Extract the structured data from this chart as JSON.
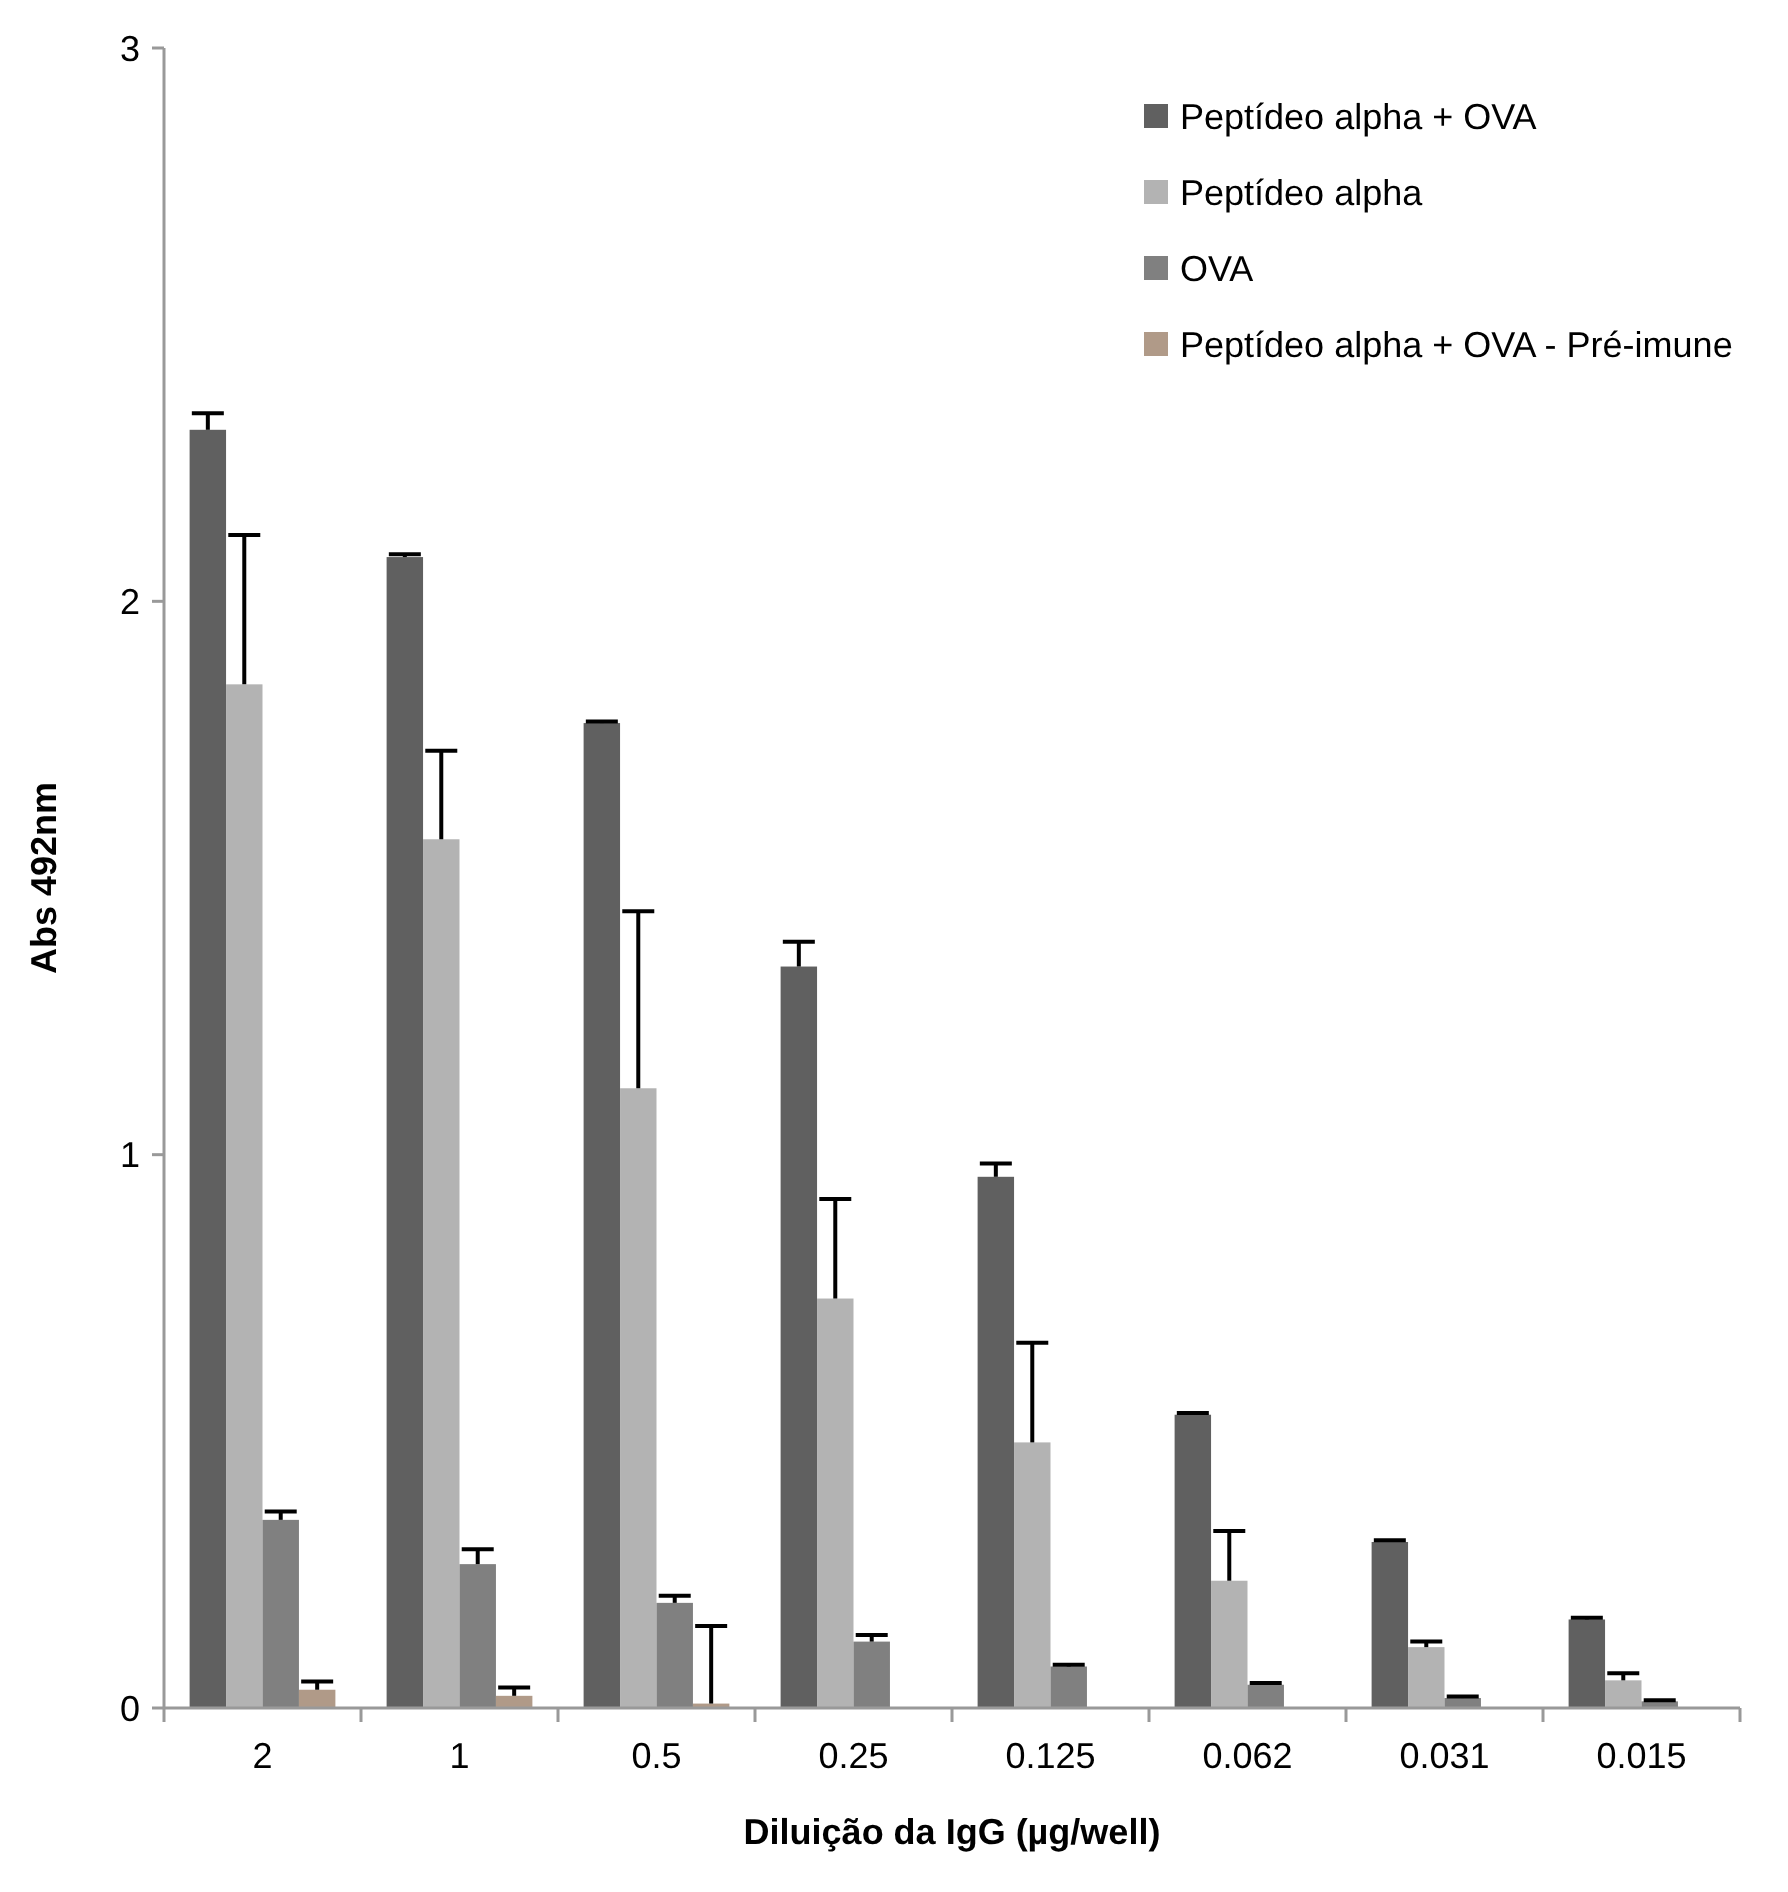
{
  "chart_data": {
    "type": "bar",
    "xlabel": "Diluição da IgG (µg/well)",
    "ylabel": "Abs 492nm",
    "categories": [
      "2",
      "1",
      "0.5",
      "0.25",
      "0.125",
      "0.062",
      "0.031",
      "0.015"
    ],
    "ylim": [
      0,
      3
    ],
    "yticks": [
      0,
      1,
      2,
      3
    ],
    "grid": false,
    "legend": "top right",
    "series": [
      {
        "name": "Peptídeo alpha + OVA",
        "color": "#606060",
        "values": [
          2.31,
          2.08,
          1.78,
          1.34,
          0.96,
          0.53,
          0.3,
          0.16
        ],
        "errors": [
          0.03,
          0.005,
          0.003,
          0.045,
          0.024,
          0.003,
          0.003,
          0.003
        ]
      },
      {
        "name": "Peptídeo alpha",
        "color": "#b3b3b3",
        "values": [
          1.85,
          1.57,
          1.12,
          0.74,
          0.48,
          0.23,
          0.11,
          0.05
        ],
        "errors": [
          0.27,
          0.16,
          0.32,
          0.18,
          0.18,
          0.09,
          0.01,
          0.013
        ]
      },
      {
        "name": "OVA",
        "color": "#808080",
        "values": [
          0.34,
          0.26,
          0.19,
          0.12,
          0.075,
          0.042,
          0.018,
          0.012
        ],
        "errors": [
          0.015,
          0.027,
          0.013,
          0.012,
          0.003,
          0.003,
          0.003,
          0.002
        ]
      },
      {
        "name": "Peptídeo alpha + OVA - Pré-imune",
        "color": "#b09a88",
        "values": [
          0.033,
          0.022,
          0.008,
          null,
          null,
          null,
          null,
          null
        ],
        "errors": [
          0.015,
          0.015,
          0.14,
          null,
          null,
          null,
          null,
          null
        ]
      }
    ]
  }
}
